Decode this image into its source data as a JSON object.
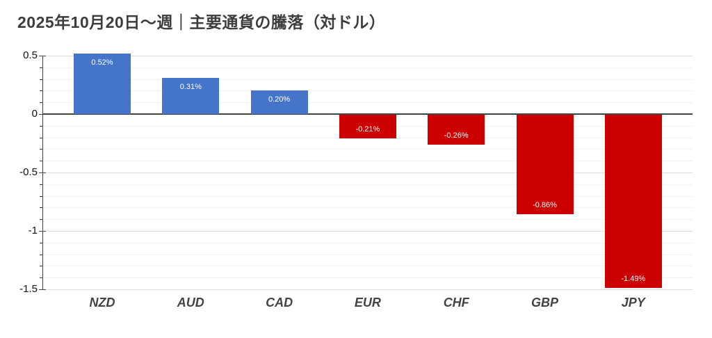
{
  "title": "2025年10月20日〜週｜主要通貨の騰落（対ドル）",
  "chart_data": {
    "type": "bar",
    "title": "2025年10月20日〜週｜主要通貨の騰落（対ドル）",
    "categories": [
      "NZD",
      "AUD",
      "CAD",
      "EUR",
      "CHF",
      "GBP",
      "JPY"
    ],
    "values": [
      0.52,
      0.31,
      0.2,
      -0.21,
      -0.26,
      -0.86,
      -1.49
    ],
    "data_labels": [
      "0.52%",
      "0.31%",
      "0.20%",
      "-0.21%",
      "-0.26%",
      "-0.86%",
      "-1.49%"
    ],
    "xlabel": "",
    "ylabel": "",
    "ylim": [
      -1.5,
      0.55
    ],
    "y_ticks_major": [
      0.5,
      0,
      -0.5,
      -1,
      -1.5
    ],
    "y_tick_labels": [
      "0.5",
      "0",
      "-0.5",
      "-1",
      "-1.5"
    ],
    "minor_grid_step": 0.1,
    "grid": "on",
    "legend": "none",
    "colors": {
      "positive_bar": "#4575c8",
      "negative_bar": "#cc0000",
      "zero_line": "#424242",
      "axis_line": "#424242",
      "grid_major": "#dedede",
      "grid_minor": "#f2f2f2",
      "title_text": "#3d3d3d",
      "axis_text": "#111111",
      "category_text": "#434343",
      "bar_label_text": "#ffffff"
    }
  }
}
